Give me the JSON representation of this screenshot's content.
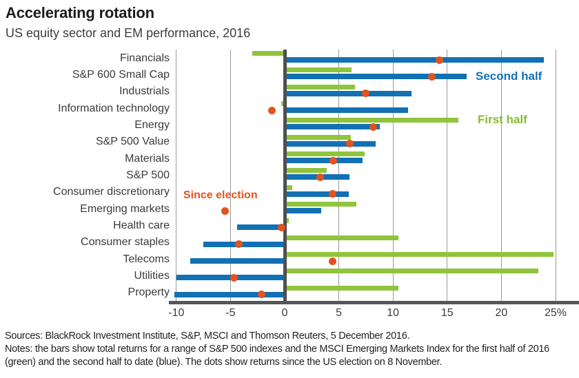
{
  "header": {
    "title": "Accelerating rotation",
    "subtitle": "US equity sector and EM performance, 2016"
  },
  "chart_data": {
    "type": "bar",
    "orientation": "horizontal",
    "title": "Accelerating rotation",
    "subtitle": "US equity sector and EM performance, 2016",
    "categories": [
      "Financials",
      "S&P 600 Small Cap",
      "Industrials",
      "Information technology",
      "Energy",
      "S&P 500 Value",
      "Materials",
      "S&P 500",
      "Consumer discretionary",
      "Emerging markets",
      "Health care",
      "Consumer staples",
      "Telecoms",
      "Utilities",
      "Property"
    ],
    "series": [
      {
        "name": "First half",
        "color": "#8fc43c",
        "values": [
          -3.0,
          6.2,
          6.5,
          -0.3,
          16.0,
          6.1,
          7.4,
          3.9,
          0.7,
          6.6,
          0.4,
          10.5,
          24.8,
          23.4,
          10.5
        ]
      },
      {
        "name": "Second half",
        "color": "#1270b4",
        "values": [
          23.9,
          16.8,
          11.7,
          11.4,
          8.8,
          8.4,
          7.2,
          6.0,
          5.9,
          3.4,
          -4.4,
          -7.5,
          -8.7,
          -10.0,
          -10.2
        ]
      }
    ],
    "dots": {
      "name": "Since election",
      "color": "#e2531d",
      "values": [
        14.3,
        13.6,
        7.5,
        -1.2,
        8.2,
        6.0,
        4.5,
        3.3,
        4.4,
        -5.5,
        -0.3,
        -4.2,
        4.4,
        -4.7,
        -2.1
      ]
    },
    "xlim": [
      -10,
      25
    ],
    "xticks": [
      -10,
      -5,
      0,
      5,
      10,
      15,
      20,
      25
    ],
    "xtick_labels": [
      "-10",
      "-5",
      "0",
      "5",
      "10",
      "15",
      "20",
      "25%"
    ],
    "grid": "vertical",
    "legend_position": "inside-right",
    "annotations": [
      {
        "text": "Second half",
        "color": "#1270b4"
      },
      {
        "text": "First half",
        "color": "#85bb35"
      },
      {
        "text": "Since election",
        "color": "#e2531d"
      }
    ]
  },
  "footer": {
    "sources": "Sources: BlackRock Investment Institute, S&P, MSCI and Thomson Reuters, 5 December 2016.",
    "notes_line1": "Notes: the bars show total returns for a range of S&P 500 indexes and the MSCI Emerging Markets Index for the first half of 2016",
    "notes_line2": "(green) and the second half to date (blue). The dots show returns since the US election on 8 November."
  }
}
